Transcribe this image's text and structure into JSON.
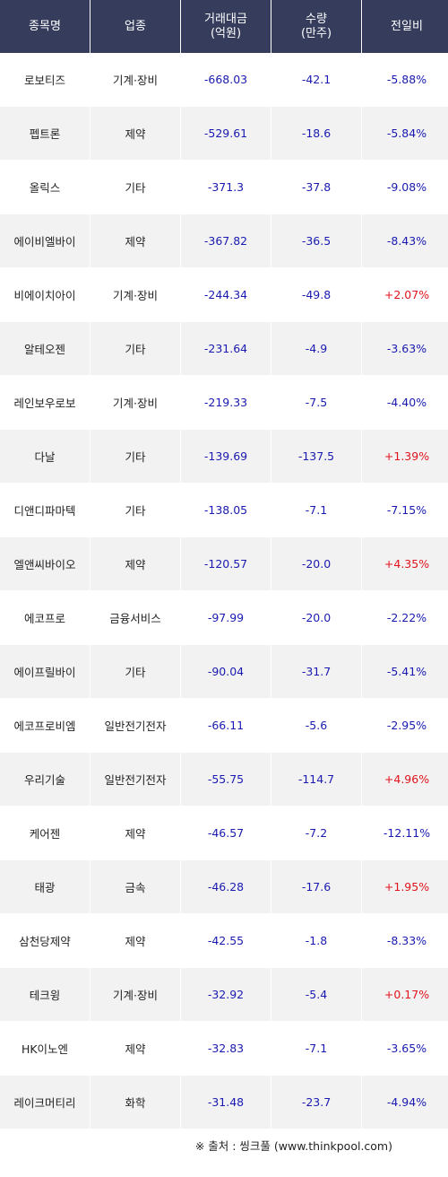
{
  "headers": [
    "종목명",
    "업종",
    "거래대금\n(억원)",
    "수량\n(만주)",
    "전일비"
  ],
  "header_lines": {
    "h0": "종목명",
    "h1": "업종",
    "h2a": "거래대금",
    "h2b": "(억원)",
    "h3a": "수량",
    "h3b": "(만주)",
    "h4": "전일비"
  },
  "rows": [
    {
      "name": "로보티즈",
      "sector": "기계·장비",
      "amount": "-668.03",
      "volume": "-42.1",
      "change": "-5.88%"
    },
    {
      "name": "펩트론",
      "sector": "제약",
      "amount": "-529.61",
      "volume": "-18.6",
      "change": "-5.84%"
    },
    {
      "name": "올릭스",
      "sector": "기타",
      "amount": "-371.3",
      "volume": "-37.8",
      "change": "-9.08%"
    },
    {
      "name": "에이비엘바이",
      "sector": "제약",
      "amount": "-367.82",
      "volume": "-36.5",
      "change": "-8.43%"
    },
    {
      "name": "비에이치아이",
      "sector": "기계·장비",
      "amount": "-244.34",
      "volume": "-49.8",
      "change": "+2.07%"
    },
    {
      "name": "알테오젠",
      "sector": "기타",
      "amount": "-231.64",
      "volume": "-4.9",
      "change": "-3.63%"
    },
    {
      "name": "레인보우로보",
      "sector": "기계·장비",
      "amount": "-219.33",
      "volume": "-7.5",
      "change": "-4.40%"
    },
    {
      "name": "다날",
      "sector": "기타",
      "amount": "-139.69",
      "volume": "-137.5",
      "change": "+1.39%"
    },
    {
      "name": "디앤디파마텍",
      "sector": "기타",
      "amount": "-138.05",
      "volume": "-7.1",
      "change": "-7.15%"
    },
    {
      "name": "엘앤씨바이오",
      "sector": "제약",
      "amount": "-120.57",
      "volume": "-20.0",
      "change": "+4.35%"
    },
    {
      "name": "에코프로",
      "sector": "금융서비스",
      "amount": "-97.99",
      "volume": "-20.0",
      "change": "-2.22%"
    },
    {
      "name": "에이프릴바이",
      "sector": "기타",
      "amount": "-90.04",
      "volume": "-31.7",
      "change": "-5.41%"
    },
    {
      "name": "에코프로비엠",
      "sector": "일반전기전자",
      "amount": "-66.11",
      "volume": "-5.6",
      "change": "-2.95%"
    },
    {
      "name": "우리기술",
      "sector": "일반전기전자",
      "amount": "-55.75",
      "volume": "-114.7",
      "change": "+4.96%"
    },
    {
      "name": "케어젠",
      "sector": "제약",
      "amount": "-46.57",
      "volume": "-7.2",
      "change": "-12.11%"
    },
    {
      "name": "태광",
      "sector": "금속",
      "amount": "-46.28",
      "volume": "-17.6",
      "change": "+1.95%"
    },
    {
      "name": "삼천당제약",
      "sector": "제약",
      "amount": "-42.55",
      "volume": "-1.8",
      "change": "-8.33%"
    },
    {
      "name": "테크윙",
      "sector": "기계·장비",
      "amount": "-32.92",
      "volume": "-5.4",
      "change": "+0.17%"
    },
    {
      "name": "HK이노엔",
      "sector": "제약",
      "amount": "-32.83",
      "volume": "-7.1",
      "change": "-3.65%"
    },
    {
      "name": "레이크머티리",
      "sector": "화학",
      "amount": "-31.48",
      "volume": "-23.7",
      "change": "-4.94%"
    }
  ],
  "colors": {
    "header_bg": "#353c5c",
    "negative": "#1a1ab0",
    "positive": "#e0141e",
    "stripe": "#f2f2f2"
  },
  "source": "※ 출처 : 씽크풀 (www.thinkpool.com)"
}
